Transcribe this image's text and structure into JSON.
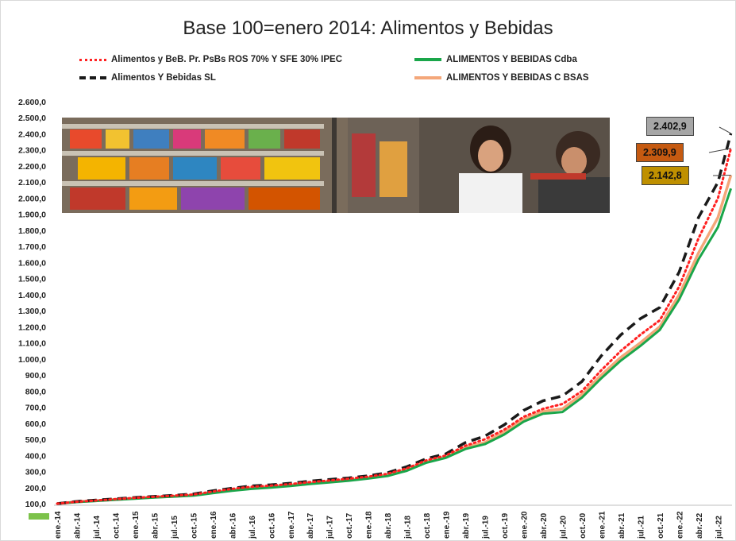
{
  "chart_data": {
    "type": "line",
    "title": "Base 100=enero 2014: Alimentos y Bebidas",
    "xlabel": "",
    "ylabel": "",
    "ylim": [
      100,
      2600
    ],
    "y_ticks": [
      "100,0",
      "200,0",
      "300,0",
      "400,0",
      "500,0",
      "600,0",
      "700,0",
      "800,0",
      "900,0",
      "1.000,0",
      "1.100,0",
      "1.200,0",
      "1.300,0",
      "1.400,0",
      "1.500,0",
      "1.600,0",
      "1.700,0",
      "1.800,0",
      "1.900,0",
      "2.000,0",
      "2.100,0",
      "2.200,0",
      "2.300,0",
      "2.400,0",
      "2.500,0",
      "2.600,0"
    ],
    "x_ticks": [
      "ene.-14",
      "abr.-14",
      "jul.-14",
      "oct.-14",
      "ene.-15",
      "abr.-15",
      "jul.-15",
      "oct.-15",
      "ene.-16",
      "abr.-16",
      "jul.-16",
      "oct.-16",
      "ene.-17",
      "abr.-17",
      "jul.-17",
      "oct.-17",
      "ene.-18",
      "abr.-18",
      "jul.-18",
      "oct.-18",
      "ene.-19",
      "abr.-19",
      "jul.-19",
      "oct.-19",
      "ene.-20",
      "abr.-20",
      "jul.-20",
      "oct.-20",
      "ene.-21",
      "abr.-21",
      "jul.-21",
      "oct.-21",
      "ene.-22",
      "abr.-22",
      "jul.-22"
    ],
    "legend_placement": "top",
    "grid": false,
    "series": [
      {
        "name": "Alimentos y BeB. Pr. PsBs ROS 70% Y SFE 30% IPEC",
        "color": "#ff2020",
        "style": "dotted",
        "points": [
          [
            "ene.-14",
            100
          ],
          [
            "abr.-14",
            112
          ],
          [
            "jul.-14",
            120
          ],
          [
            "oct.-14",
            128
          ],
          [
            "ene.-15",
            136
          ],
          [
            "abr.-15",
            143
          ],
          [
            "jul.-15",
            150
          ],
          [
            "oct.-15",
            157
          ],
          [
            "ene.-16",
            175
          ],
          [
            "abr.-16",
            192
          ],
          [
            "jul.-16",
            205
          ],
          [
            "oct.-16",
            212
          ],
          [
            "ene.-17",
            222
          ],
          [
            "abr.-17",
            234
          ],
          [
            "jul.-17",
            244
          ],
          [
            "oct.-17",
            255
          ],
          [
            "ene.-18",
            268
          ],
          [
            "abr.-18",
            286
          ],
          [
            "jul.-18",
            320
          ],
          [
            "oct.-18",
            370
          ],
          [
            "ene.-19",
            400
          ],
          [
            "abr.-19",
            460
          ],
          [
            "jul.-19",
            500
          ],
          [
            "oct.-19",
            560
          ],
          [
            "ene.-20",
            640
          ],
          [
            "abr.-20",
            690
          ],
          [
            "jul.-20",
            720
          ],
          [
            "oct.-20",
            800
          ],
          [
            "ene.-21",
            930
          ],
          [
            "abr.-21",
            1050
          ],
          [
            "jul.-21",
            1150
          ],
          [
            "oct.-21",
            1240
          ],
          [
            "ene.-22",
            1450
          ],
          [
            "abr.-22",
            1750
          ],
          [
            "jul.-22",
            2000
          ],
          [
            "sep.-22",
            2309.9
          ]
        ]
      },
      {
        "name": "Alimentos Y Bebidas SL",
        "color": "#1a1a1a",
        "style": "dashed",
        "points": [
          [
            "ene.-14",
            100
          ],
          [
            "abr.-14",
            114
          ],
          [
            "jul.-14",
            122
          ],
          [
            "oct.-14",
            130
          ],
          [
            "ene.-15",
            138
          ],
          [
            "abr.-15",
            145
          ],
          [
            "jul.-15",
            152
          ],
          [
            "oct.-15",
            160
          ],
          [
            "ene.-16",
            180
          ],
          [
            "abr.-16",
            196
          ],
          [
            "jul.-16",
            210
          ],
          [
            "oct.-16",
            217
          ],
          [
            "ene.-17",
            227
          ],
          [
            "abr.-17",
            240
          ],
          [
            "jul.-17",
            250
          ],
          [
            "oct.-17",
            260
          ],
          [
            "ene.-18",
            273
          ],
          [
            "abr.-18",
            292
          ],
          [
            "jul.-18",
            330
          ],
          [
            "oct.-18",
            380
          ],
          [
            "ene.-19",
            410
          ],
          [
            "abr.-19",
            480
          ],
          [
            "jul.-19",
            520
          ],
          [
            "oct.-19",
            590
          ],
          [
            "ene.-20",
            680
          ],
          [
            "abr.-20",
            740
          ],
          [
            "jul.-20",
            770
          ],
          [
            "oct.-20",
            860
          ],
          [
            "ene.-21",
            1020
          ],
          [
            "abr.-21",
            1150
          ],
          [
            "jul.-21",
            1250
          ],
          [
            "oct.-21",
            1320
          ],
          [
            "ene.-22",
            1540
          ],
          [
            "abr.-22",
            1880
          ],
          [
            "jul.-22",
            2100
          ],
          [
            "sep.-22",
            2402.9
          ]
        ]
      },
      {
        "name": "ALIMENTOS Y BEBIDAS Cdba",
        "color": "#1aa64a",
        "style": "solid",
        "points": [
          [
            "ene.-14",
            100
          ],
          [
            "abr.-14",
            110
          ],
          [
            "jul.-14",
            117
          ],
          [
            "oct.-14",
            124
          ],
          [
            "ene.-15",
            131
          ],
          [
            "abr.-15",
            138
          ],
          [
            "jul.-15",
            144
          ],
          [
            "oct.-15",
            150
          ],
          [
            "ene.-16",
            165
          ],
          [
            "abr.-16",
            180
          ],
          [
            "jul.-16",
            192
          ],
          [
            "oct.-16",
            200
          ],
          [
            "ene.-17",
            210
          ],
          [
            "abr.-17",
            222
          ],
          [
            "jul.-17",
            232
          ],
          [
            "oct.-17",
            243
          ],
          [
            "ene.-18",
            256
          ],
          [
            "abr.-18",
            272
          ],
          [
            "jul.-18",
            305
          ],
          [
            "oct.-18",
            355
          ],
          [
            "ene.-19",
            385
          ],
          [
            "abr.-19",
            440
          ],
          [
            "jul.-19",
            470
          ],
          [
            "oct.-19",
            530
          ],
          [
            "ene.-20",
            610
          ],
          [
            "abr.-20",
            660
          ],
          [
            "jul.-20",
            670
          ],
          [
            "oct.-20",
            760
          ],
          [
            "ene.-21",
            880
          ],
          [
            "abr.-21",
            990
          ],
          [
            "jul.-21",
            1080
          ],
          [
            "oct.-21",
            1180
          ],
          [
            "ene.-22",
            1370
          ],
          [
            "abr.-22",
            1620
          ],
          [
            "jul.-22",
            1820
          ],
          [
            "sep.-22",
            2060
          ]
        ]
      },
      {
        "name": "ALIMENTOS Y BEBIDAS C BSAS",
        "color": "#f4a77a",
        "style": "solid",
        "points": [
          [
            "ene.-14",
            100
          ],
          [
            "abr.-14",
            111
          ],
          [
            "jul.-14",
            119
          ],
          [
            "oct.-14",
            126
          ],
          [
            "ene.-15",
            133
          ],
          [
            "abr.-15",
            140
          ],
          [
            "jul.-15",
            146
          ],
          [
            "oct.-15",
            153
          ],
          [
            "ene.-16",
            168
          ],
          [
            "abr.-16",
            184
          ],
          [
            "jul.-16",
            196
          ],
          [
            "oct.-16",
            204
          ],
          [
            "ene.-17",
            214
          ],
          [
            "abr.-17",
            226
          ],
          [
            "jul.-17",
            236
          ],
          [
            "oct.-17",
            247
          ],
          [
            "ene.-18",
            260
          ],
          [
            "abr.-18",
            278
          ],
          [
            "jul.-18",
            312
          ],
          [
            "oct.-18",
            360
          ],
          [
            "ene.-19",
            390
          ],
          [
            "abr.-19",
            450
          ],
          [
            "jul.-19",
            480
          ],
          [
            "oct.-19",
            545
          ],
          [
            "ene.-20",
            625
          ],
          [
            "abr.-20",
            675
          ],
          [
            "jul.-20",
            690
          ],
          [
            "oct.-20",
            780
          ],
          [
            "ene.-21",
            900
          ],
          [
            "abr.-21",
            1010
          ],
          [
            "jul.-21",
            1100
          ],
          [
            "oct.-21",
            1200
          ],
          [
            "ene.-22",
            1400
          ],
          [
            "abr.-22",
            1660
          ],
          [
            "jul.-22",
            1880
          ],
          [
            "sep.-22",
            2142.8
          ]
        ]
      }
    ],
    "callouts": [
      {
        "label": "2.402,9",
        "series": "Alimentos Y Bebidas SL",
        "bg": "#a6a6a6",
        "fg": "#111111"
      },
      {
        "label": "2.309,9",
        "series": "Alimentos y BeB. Pr. PsBs ROS 70% Y SFE 30% IPEC",
        "bg": "#c55a11",
        "fg": "#111111"
      },
      {
        "label": "2.142,8",
        "series": "ALIMENTOS Y BEBIDAS C BSAS",
        "bg": "#bf9000",
        "fg": "#111111"
      }
    ]
  }
}
